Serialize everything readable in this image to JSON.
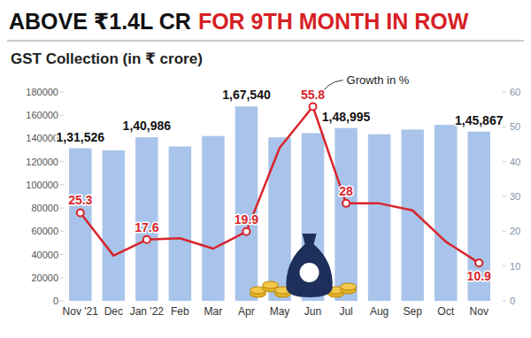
{
  "chart_data": {
    "type": "bar",
    "title": [
      "ABOVE ₹1.4L CR",
      "FOR 9TH MONTH IN ROW"
    ],
    "subtitle": "GST Collection (in ₹ crore)",
    "categories": [
      "Nov '21",
      "Dec",
      "Jan '22",
      "Feb",
      "Mar",
      "Apr",
      "May",
      "Jun",
      "Jul",
      "Aug",
      "Sep",
      "Oct",
      "Nov"
    ],
    "series": [
      {
        "type": "bar",
        "color": "#a9c4ea",
        "values": [
          131526,
          129780,
          140986,
          133026,
          142095,
          167540,
          140885,
          144616,
          148995,
          143612,
          147686,
          151718,
          145867
        ],
        "value_labels": [
          "1,31,526",
          null,
          "1,40,986",
          null,
          null,
          "1,67,540",
          null,
          null,
          "1,48,995",
          null,
          null,
          null,
          "1,45,867"
        ]
      },
      {
        "name": "Growth in %",
        "type": "line",
        "axis": "y2",
        "color": "#d8252b",
        "marker": "circle",
        "values": [
          25.3,
          13,
          17.6,
          18,
          15,
          19.9,
          44,
          55.8,
          28,
          28,
          26,
          17,
          10.9
        ],
        "value_labels": [
          "25.3",
          null,
          "17.6",
          null,
          null,
          "19.9",
          null,
          "55.8",
          "28",
          null,
          null,
          null,
          "10.9"
        ]
      }
    ],
    "ylim": [
      0,
      180000
    ],
    "yticks": [
      0,
      20000,
      40000,
      60000,
      80000,
      100000,
      120000,
      140000,
      160000,
      180000
    ],
    "y2lim": [
      0,
      60
    ],
    "y2ticks": [
      0,
      10,
      20,
      30,
      40,
      50,
      60
    ],
    "grid": false,
    "data_labels": true
  }
}
